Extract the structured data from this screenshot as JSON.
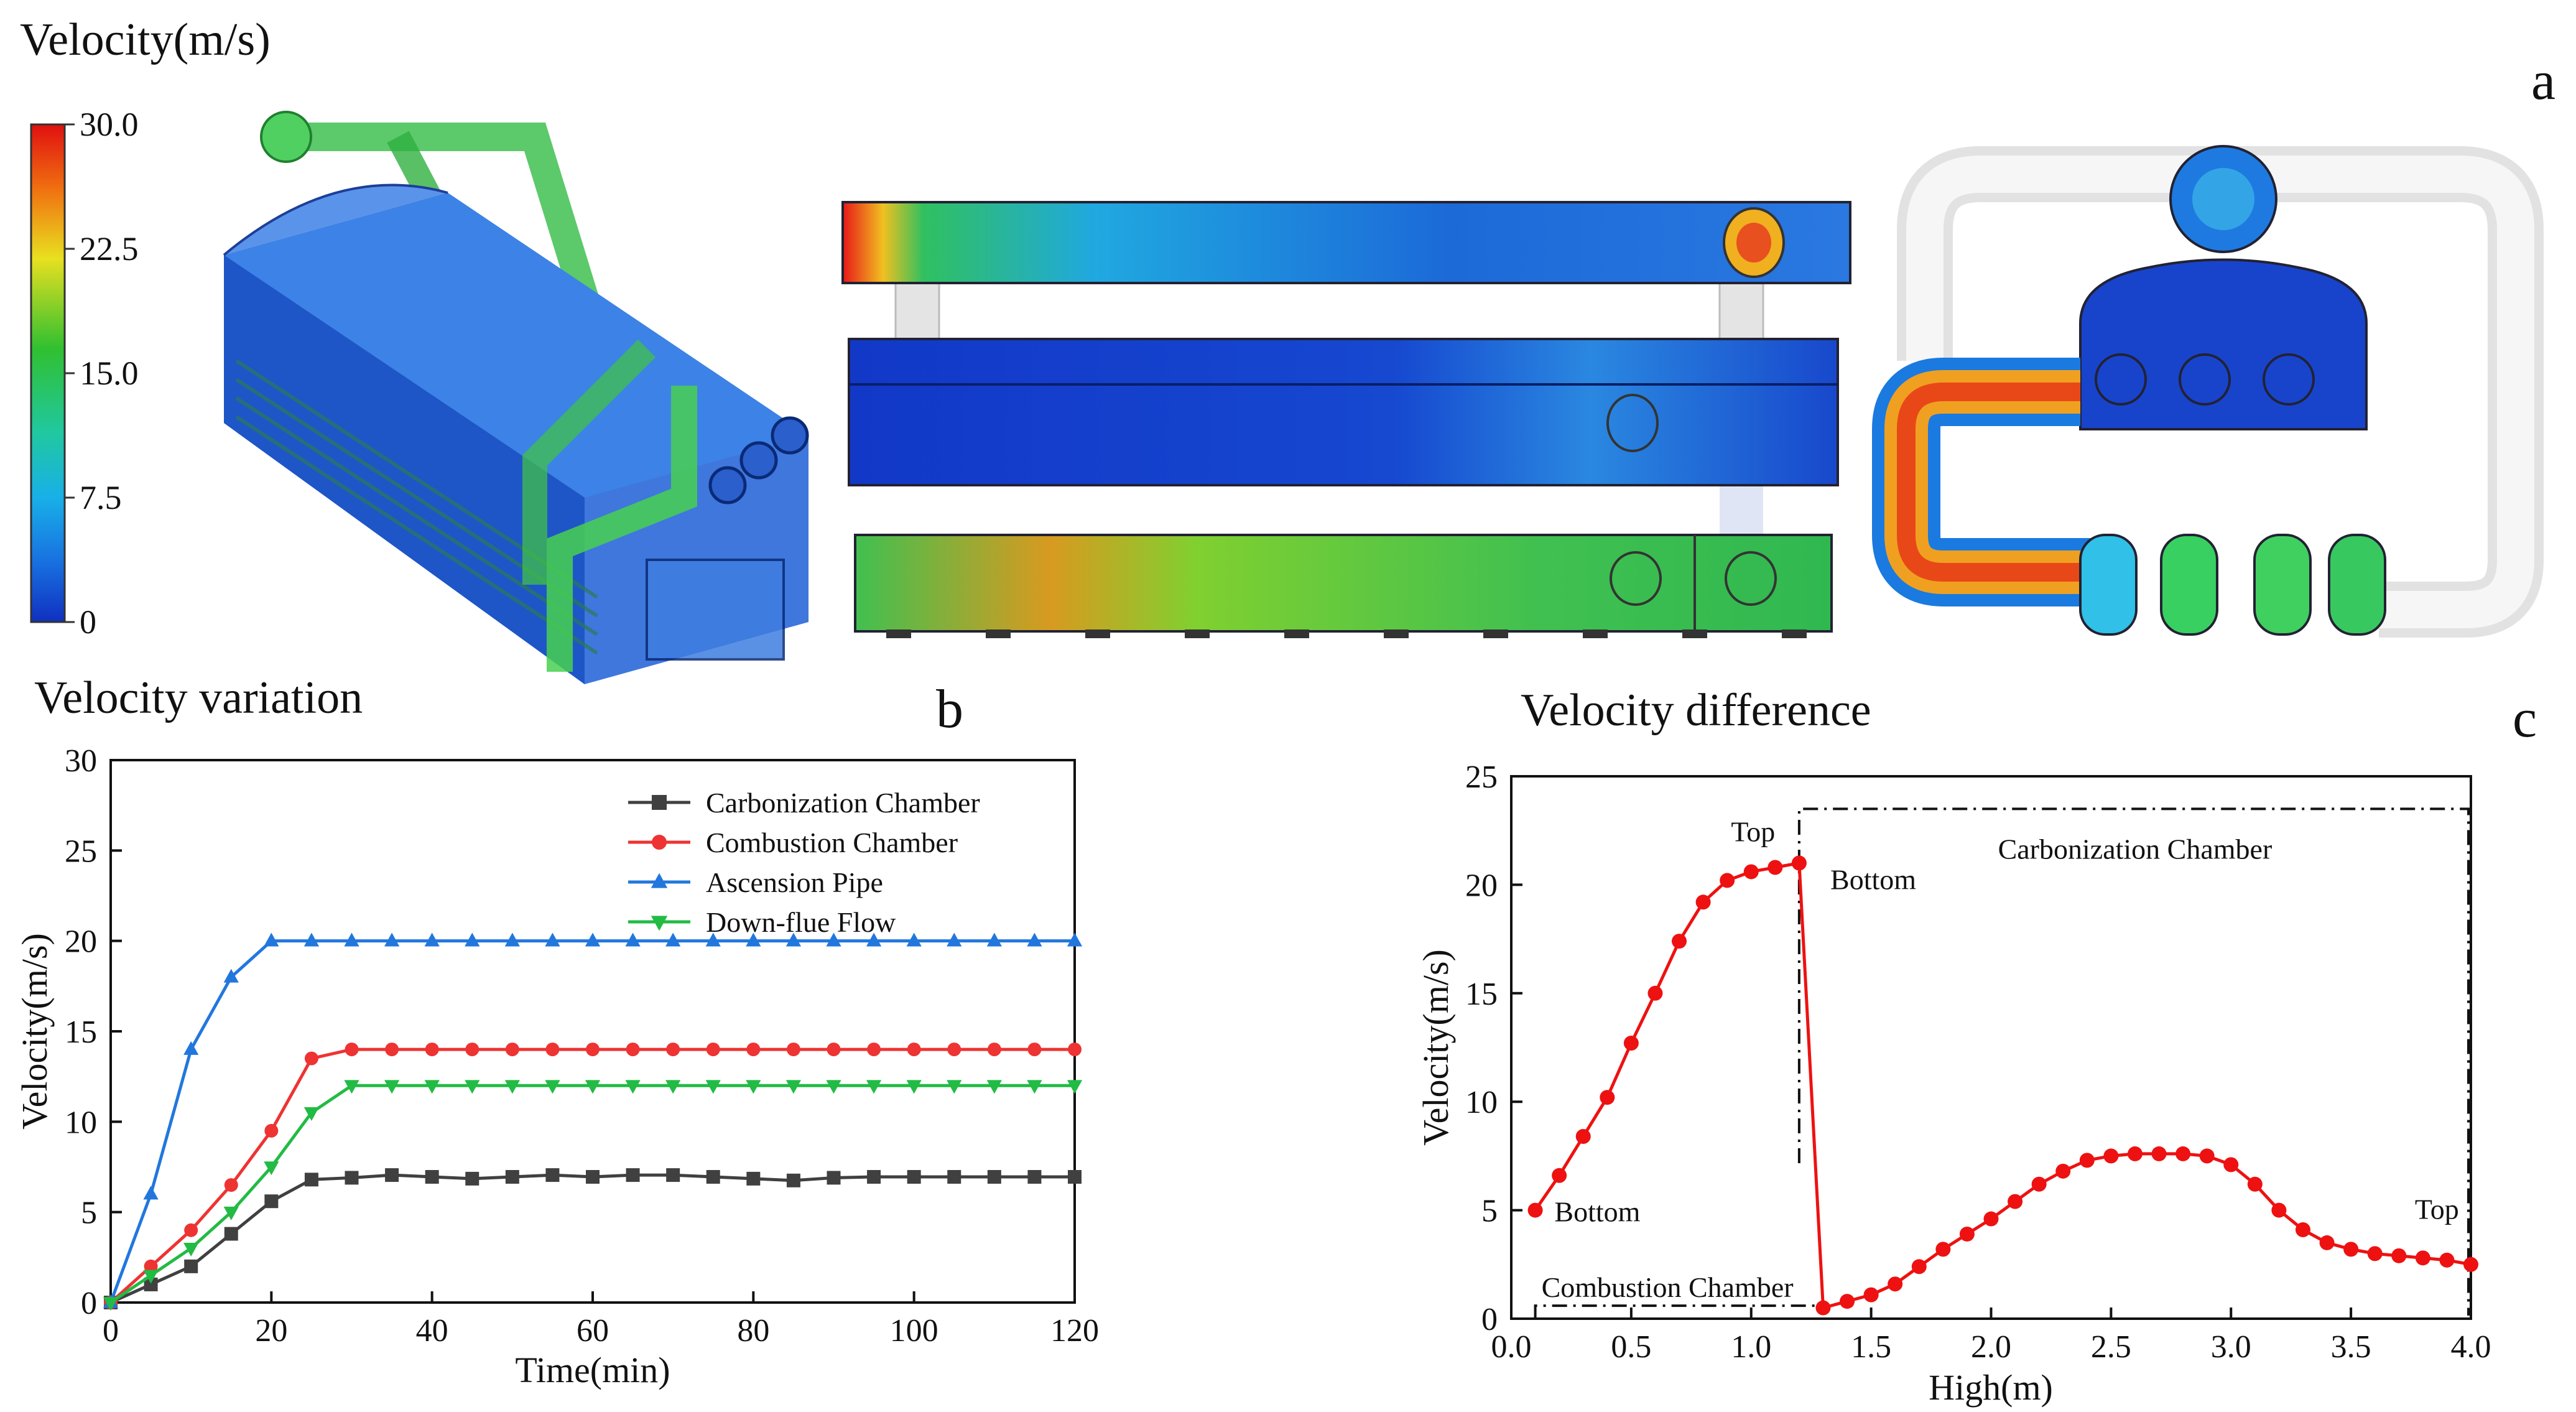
{
  "panel_a": {
    "label": "a",
    "colorbar_title": "Velocity(m/s)",
    "colorbar_ticks": [
      "30.0",
      "22.5",
      "15.0",
      "7.5",
      "0"
    ],
    "colors": {
      "low": "#1030c0",
      "mid_low": "#18b8e8",
      "mid": "#20c040",
      "mid_high": "#e8e020",
      "high": "#e81818"
    }
  },
  "panel_b": {
    "label": "b"
  },
  "panel_c": {
    "label": "c"
  },
  "chart_data": [
    {
      "type": "line",
      "title": "Velocity variation",
      "xlabel": "Time(min)",
      "ylabel": "Velocity(m/s)",
      "xlim": [
        0,
        120
      ],
      "ylim": [
        0,
        30
      ],
      "xticks": [
        0,
        20,
        40,
        60,
        80,
        100,
        120
      ],
      "yticks": [
        0,
        5,
        10,
        15,
        20,
        25,
        30
      ],
      "legend_position": "top-right",
      "x": [
        0,
        5,
        10,
        15,
        20,
        25,
        30,
        35,
        40,
        45,
        50,
        55,
        60,
        65,
        70,
        75,
        80,
        85,
        90,
        95,
        100,
        105,
        110,
        115,
        120
      ],
      "series": [
        {
          "name": "Carbonization Chamber",
          "color": "#404040",
          "marker": "square",
          "values": [
            0,
            1,
            2,
            3.8,
            5.6,
            6.8,
            6.9,
            7.05,
            6.95,
            6.85,
            6.95,
            7.05,
            6.95,
            7.05,
            7.05,
            6.95,
            6.85,
            6.75,
            6.9,
            6.95,
            6.95,
            6.95,
            6.95,
            6.95,
            6.95
          ]
        },
        {
          "name": "Combustion Chamber",
          "color": "#ee3333",
          "marker": "circle",
          "values": [
            0,
            2,
            4,
            6.5,
            9.5,
            13.5,
            14,
            14,
            14,
            14,
            14,
            14,
            14,
            14,
            14,
            14,
            14,
            14,
            14,
            14,
            14,
            14,
            14,
            14,
            14
          ]
        },
        {
          "name": "Ascension Pipe",
          "color": "#2277dd",
          "marker": "triangle-up",
          "values": [
            0,
            6,
            14,
            18,
            20,
            20,
            20,
            20,
            20,
            20,
            20,
            20,
            20,
            20,
            20,
            20,
            20,
            20,
            20,
            20,
            20,
            20,
            20,
            20,
            20
          ]
        },
        {
          "name": "Down-flue Flow",
          "color": "#22bb44",
          "marker": "triangle-down",
          "values": [
            0,
            1.5,
            3,
            5,
            7.5,
            10.5,
            12,
            12,
            12,
            12,
            12,
            12,
            12,
            12,
            12,
            12,
            12,
            12,
            12,
            12,
            12,
            12,
            12,
            12,
            12
          ]
        }
      ]
    },
    {
      "type": "line",
      "title": "Velocity difference",
      "xlabel": "High(m)",
      "ylabel": "Velocity(m/s)",
      "xlim": [
        0,
        4.0
      ],
      "ylim": [
        0,
        25
      ],
      "xticks": [
        "0.0",
        "0.5",
        "1.0",
        "1.5",
        "2.0",
        "2.5",
        "3.0",
        "3.5",
        "4.0"
      ],
      "yticks": [
        0,
        5,
        10,
        15,
        20,
        25
      ],
      "series": [
        {
          "name": "Velocity",
          "color": "#ee1111",
          "marker": "circle",
          "x": [
            0.1,
            0.2,
            0.3,
            0.4,
            0.5,
            0.6,
            0.7,
            0.8,
            0.9,
            1.0,
            1.1,
            1.2,
            1.3,
            1.4,
            1.5,
            1.6,
            1.7,
            1.8,
            1.9,
            2.0,
            2.1,
            2.2,
            2.3,
            2.4,
            2.5,
            2.6,
            2.7,
            2.8,
            2.9,
            3.0,
            3.1,
            3.2,
            3.3,
            3.4,
            3.5,
            3.6,
            3.7,
            3.8,
            3.9,
            4.0
          ],
          "values": [
            5.0,
            6.6,
            8.4,
            10.2,
            12.7,
            15.0,
            17.4,
            19.2,
            20.2,
            20.6,
            20.8,
            21.0,
            0.5,
            0.8,
            1.1,
            1.6,
            2.4,
            3.2,
            3.9,
            4.6,
            5.4,
            6.2,
            6.8,
            7.3,
            7.5,
            7.6,
            7.6,
            7.6,
            7.5,
            7.1,
            6.2,
            5.0,
            4.1,
            3.5,
            3.2,
            3.0,
            2.9,
            2.8,
            2.7,
            2.5
          ]
        }
      ],
      "regions": [
        {
          "label": "Combustion Chamber",
          "x": [
            0.1,
            1.3
          ],
          "y": [
            0,
            0.6
          ],
          "style": "dash-dot"
        },
        {
          "label": "Carbonization Chamber",
          "x": [
            1.2,
            4.0
          ],
          "y": [
            0,
            23.5
          ],
          "style": "dash-dot"
        }
      ],
      "annotations": [
        "Bottom",
        "Top",
        "Bottom",
        "Top"
      ]
    }
  ]
}
